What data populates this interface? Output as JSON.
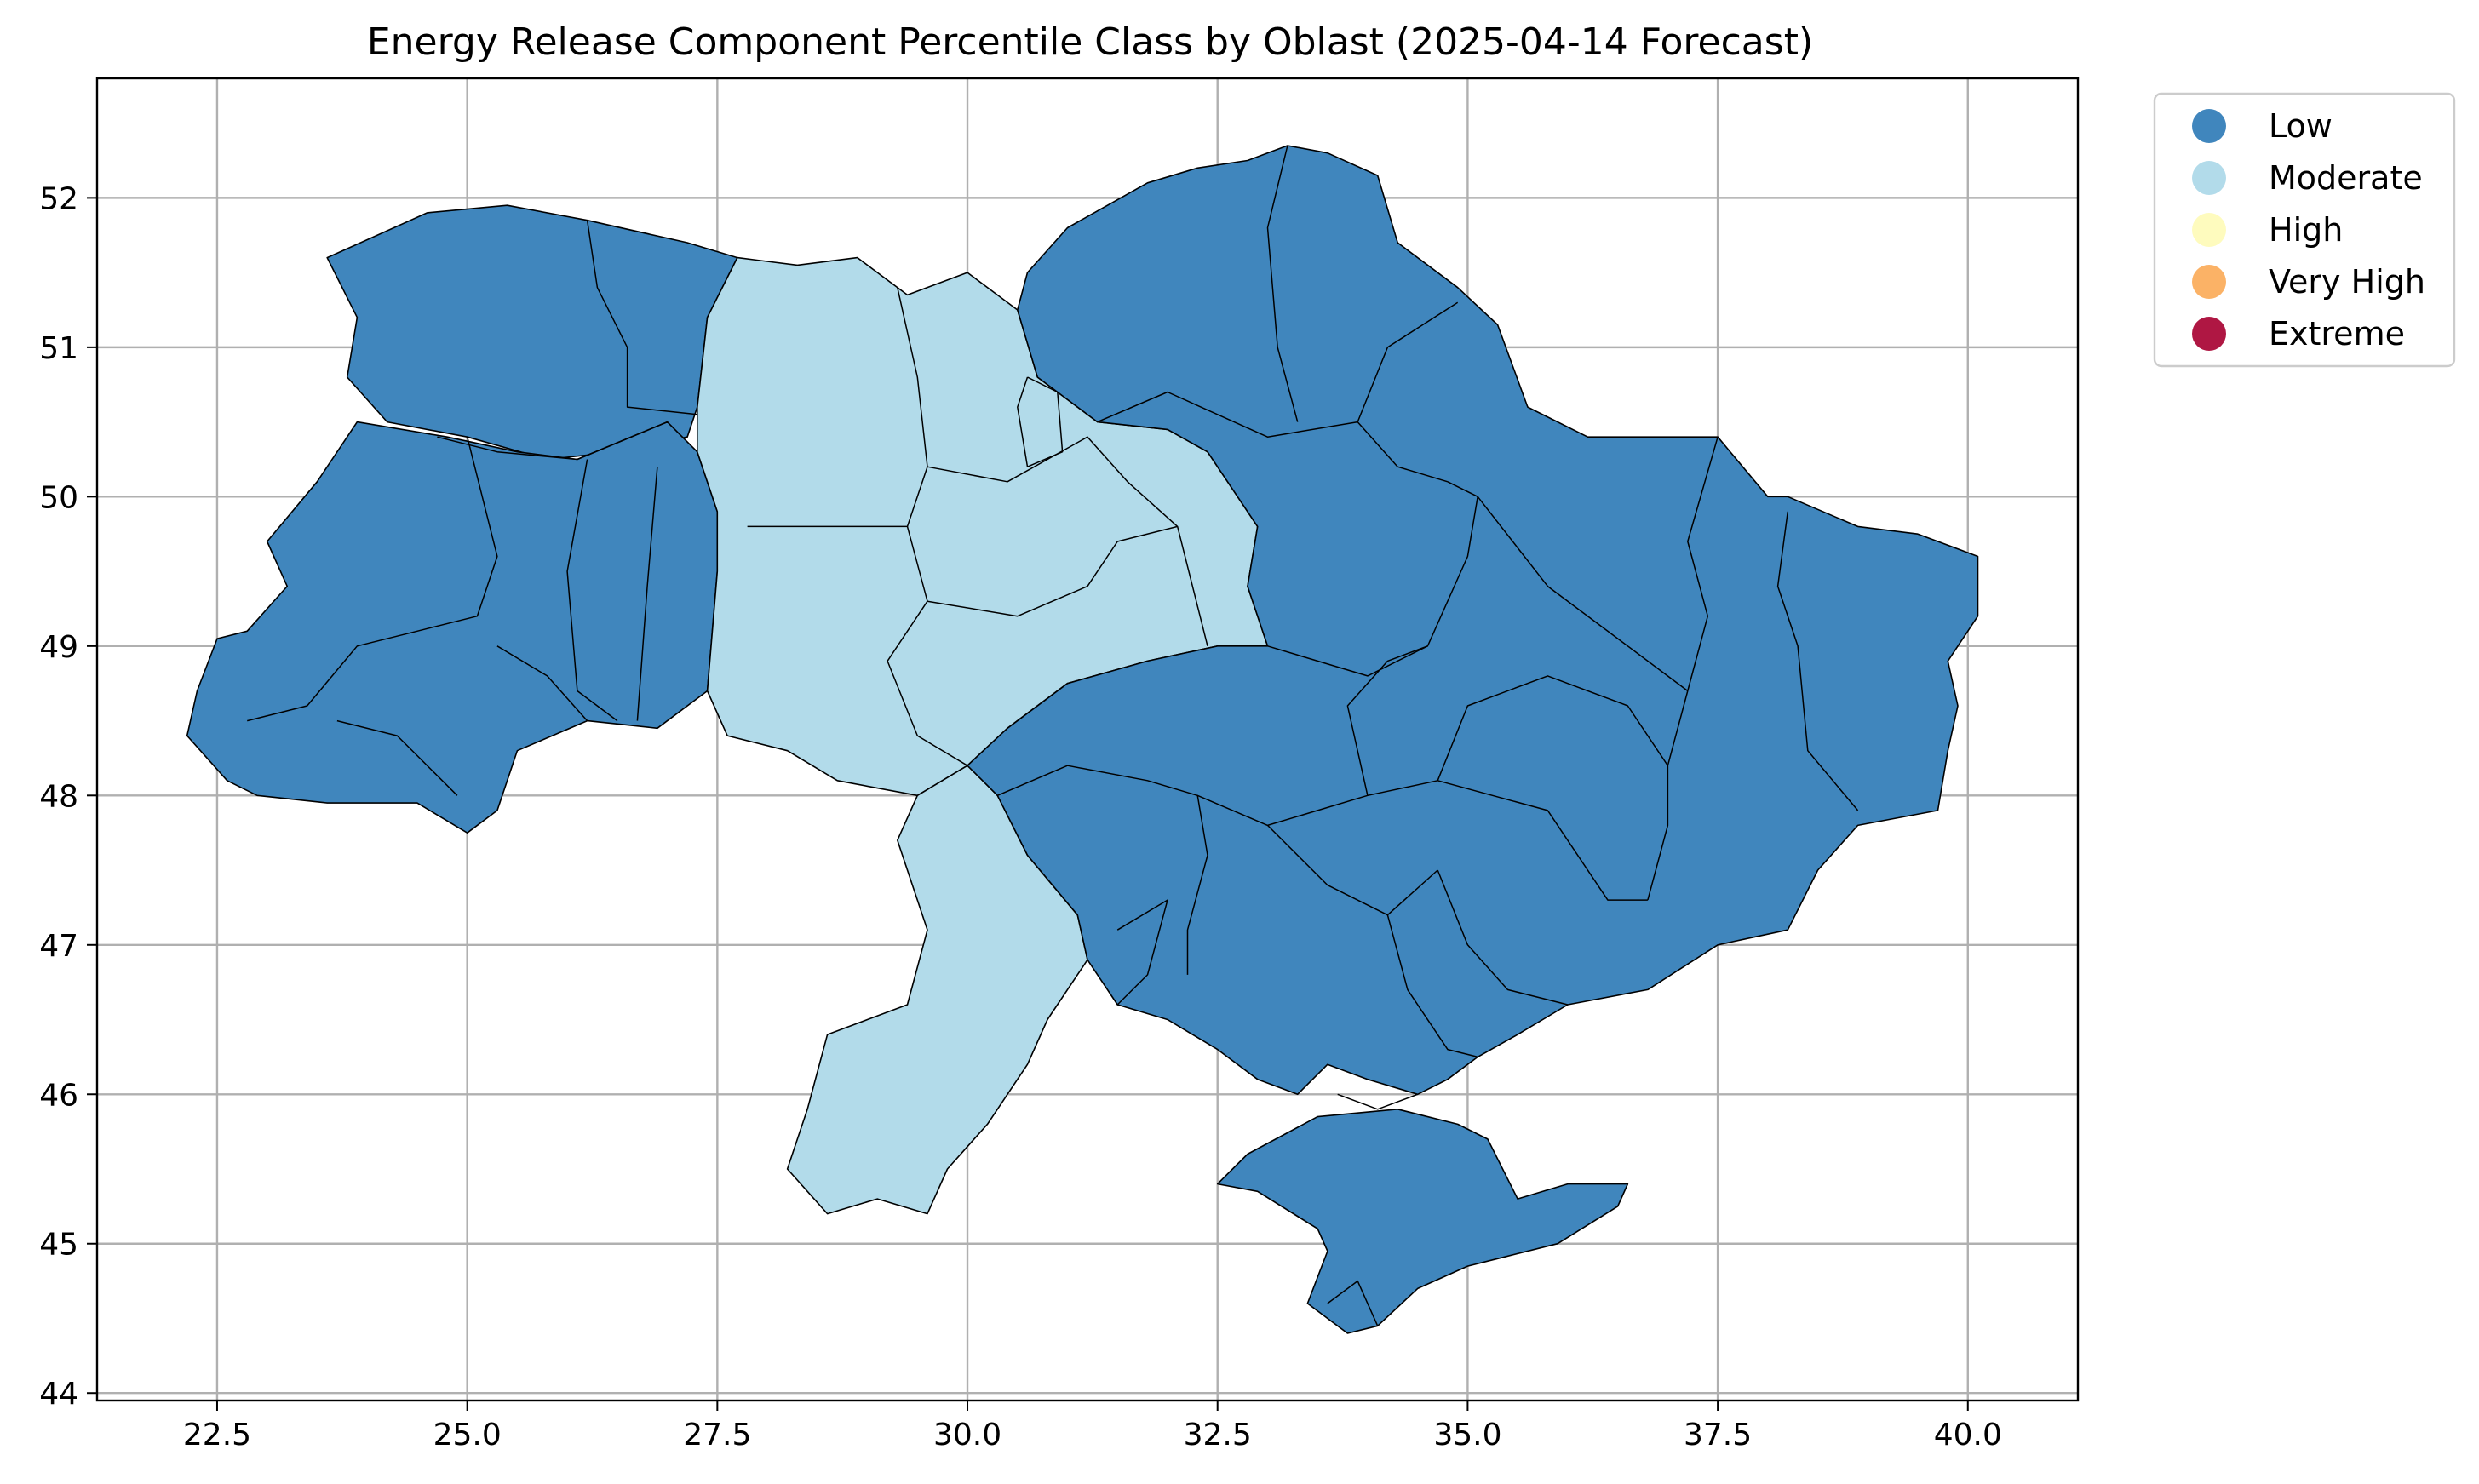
{
  "chart_data": {
    "type": "choropleth",
    "title": "Energy Release Component Percentile Class by Oblast (2025-04-14 Forecast)",
    "xlim": [
      21.3,
      41.1
    ],
    "ylim": [
      43.95,
      52.8
    ],
    "x_ticks": [
      "22.5",
      "25.0",
      "27.5",
      "30.0",
      "32.5",
      "35.0",
      "37.5",
      "40.0"
    ],
    "x_tick_values": [
      22.5,
      25.0,
      27.5,
      30.0,
      32.5,
      35.0,
      37.5,
      40.0
    ],
    "y_ticks": [
      "44",
      "45",
      "46",
      "47",
      "48",
      "49",
      "50",
      "51",
      "52"
    ],
    "y_tick_values": [
      44,
      45,
      46,
      47,
      48,
      49,
      50,
      51,
      52
    ],
    "grid": true,
    "legend_position": "outside-top-right",
    "legend": [
      {
        "label": "Low",
        "color": "#4086bd"
      },
      {
        "label": "Moderate",
        "color": "#b2dbea"
      },
      {
        "label": "High",
        "color": "#fefbbe"
      },
      {
        "label": "Very High",
        "color": "#fbb266"
      },
      {
        "label": "Extreme",
        "color": "#af1743"
      }
    ],
    "regions": [
      {
        "class": "Low",
        "polygon": [
          [
            23.6,
            51.6
          ],
          [
            24.6,
            51.9
          ],
          [
            25.4,
            51.95
          ],
          [
            26.2,
            51.85
          ],
          [
            27.2,
            51.7
          ],
          [
            27.7,
            51.6
          ],
          [
            27.4,
            51.2
          ],
          [
            27.3,
            50.6
          ],
          [
            27.2,
            50.4
          ],
          [
            26.5,
            50.3
          ],
          [
            25.8,
            50.25
          ],
          [
            25.0,
            50.4
          ],
          [
            24.2,
            50.5
          ],
          [
            23.8,
            50.8
          ],
          [
            23.9,
            51.2
          ]
        ]
      },
      {
        "class": "Low",
        "polygon": [
          [
            23.9,
            50.5
          ],
          [
            24.8,
            50.4
          ],
          [
            25.5,
            50.3
          ],
          [
            26.1,
            50.25
          ],
          [
            27.0,
            50.5
          ],
          [
            27.3,
            50.3
          ],
          [
            27.5,
            49.9
          ],
          [
            27.5,
            49.5
          ],
          [
            27.4,
            48.7
          ],
          [
            26.9,
            48.45
          ],
          [
            26.2,
            48.5
          ],
          [
            25.5,
            48.3
          ],
          [
            25.3,
            47.9
          ],
          [
            25.0,
            47.75
          ],
          [
            24.5,
            47.95
          ],
          [
            23.6,
            47.95
          ],
          [
            22.9,
            48.0
          ],
          [
            22.6,
            48.1
          ],
          [
            22.2,
            48.4
          ],
          [
            22.3,
            48.7
          ],
          [
            22.5,
            49.05
          ],
          [
            22.8,
            49.1
          ],
          [
            23.2,
            49.4
          ],
          [
            23.0,
            49.7
          ],
          [
            23.5,
            50.1
          ]
        ]
      },
      {
        "class": "Moderate",
        "polygon": [
          [
            27.7,
            51.6
          ],
          [
            28.3,
            51.55
          ],
          [
            28.9,
            51.6
          ],
          [
            29.4,
            51.35
          ],
          [
            30.0,
            51.5
          ],
          [
            30.5,
            51.25
          ],
          [
            30.7,
            50.8
          ],
          [
            31.3,
            50.5
          ],
          [
            32.0,
            50.45
          ],
          [
            32.4,
            50.3
          ],
          [
            32.6,
            50.1
          ],
          [
            32.9,
            49.8
          ],
          [
            32.8,
            49.4
          ],
          [
            33.0,
            49.0
          ],
          [
            32.5,
            49.0
          ],
          [
            31.8,
            48.9
          ],
          [
            31.0,
            48.75
          ],
          [
            30.4,
            48.45
          ],
          [
            30.0,
            48.2
          ],
          [
            29.5,
            48.0
          ],
          [
            28.7,
            48.1
          ],
          [
            28.2,
            48.3
          ],
          [
            27.6,
            48.4
          ],
          [
            27.4,
            48.7
          ],
          [
            27.5,
            49.5
          ],
          [
            27.5,
            49.9
          ],
          [
            27.3,
            50.3
          ],
          [
            27.3,
            50.6
          ],
          [
            27.4,
            51.2
          ]
        ]
      },
      {
        "class": "Moderate",
        "polygon": [
          [
            29.5,
            48.0
          ],
          [
            30.0,
            48.2
          ],
          [
            30.3,
            48.0
          ],
          [
            30.6,
            47.6
          ],
          [
            31.1,
            47.2
          ],
          [
            31.2,
            46.9
          ],
          [
            30.8,
            46.5
          ],
          [
            30.6,
            46.2
          ],
          [
            30.2,
            45.8
          ],
          [
            29.8,
            45.5
          ],
          [
            29.6,
            45.2
          ],
          [
            29.1,
            45.3
          ],
          [
            28.6,
            45.2
          ],
          [
            28.2,
            45.5
          ],
          [
            28.4,
            45.9
          ],
          [
            28.6,
            46.4
          ],
          [
            29.0,
            46.5
          ],
          [
            29.4,
            46.6
          ],
          [
            29.6,
            47.1
          ],
          [
            29.3,
            47.7
          ]
        ]
      },
      {
        "class": "Low",
        "polygon": [
          [
            30.7,
            50.8
          ],
          [
            30.5,
            51.25
          ],
          [
            30.6,
            51.5
          ],
          [
            31.0,
            51.8
          ],
          [
            31.8,
            52.1
          ],
          [
            32.3,
            52.2
          ],
          [
            32.8,
            52.25
          ],
          [
            33.2,
            52.35
          ],
          [
            33.6,
            52.3
          ],
          [
            34.1,
            52.15
          ],
          [
            34.3,
            51.7
          ],
          [
            34.9,
            51.4
          ],
          [
            35.3,
            51.15
          ],
          [
            35.6,
            50.6
          ],
          [
            36.2,
            50.4
          ],
          [
            37.0,
            50.4
          ],
          [
            37.5,
            50.4
          ],
          [
            38.0,
            50.0
          ],
          [
            38.2,
            50.0
          ],
          [
            38.9,
            49.8
          ],
          [
            39.5,
            49.75
          ],
          [
            40.1,
            49.6
          ],
          [
            40.1,
            49.2
          ],
          [
            39.8,
            48.9
          ],
          [
            39.9,
            48.6
          ],
          [
            39.8,
            48.3
          ],
          [
            39.7,
            47.9
          ],
          [
            39.3,
            47.85
          ],
          [
            38.9,
            47.8
          ],
          [
            38.5,
            47.5
          ],
          [
            38.2,
            47.1
          ],
          [
            37.5,
            47.0
          ],
          [
            36.8,
            46.7
          ],
          [
            36.0,
            46.6
          ],
          [
            35.5,
            46.4
          ],
          [
            35.1,
            46.25
          ],
          [
            34.8,
            46.1
          ],
          [
            34.5,
            46.0
          ],
          [
            34.0,
            46.1
          ],
          [
            33.6,
            46.2
          ],
          [
            33.3,
            46.0
          ],
          [
            32.9,
            46.1
          ],
          [
            32.5,
            46.3
          ],
          [
            32.0,
            46.5
          ],
          [
            31.5,
            46.6
          ],
          [
            31.2,
            46.9
          ],
          [
            31.1,
            47.2
          ],
          [
            30.6,
            47.6
          ],
          [
            30.3,
            48.0
          ],
          [
            30.0,
            48.2
          ],
          [
            30.4,
            48.45
          ],
          [
            31.0,
            48.75
          ],
          [
            31.8,
            48.9
          ],
          [
            32.5,
            49.0
          ],
          [
            33.0,
            49.0
          ],
          [
            32.8,
            49.4
          ],
          [
            32.9,
            49.8
          ],
          [
            32.6,
            50.1
          ],
          [
            32.4,
            50.3
          ],
          [
            32.0,
            50.45
          ],
          [
            31.3,
            50.5
          ]
        ]
      },
      {
        "class": "Low",
        "polygon": [
          [
            34.9,
            45.8
          ],
          [
            35.2,
            45.7
          ],
          [
            35.5,
            45.3
          ],
          [
            36.0,
            45.4
          ],
          [
            36.6,
            45.4
          ],
          [
            36.5,
            45.25
          ],
          [
            35.9,
            45.0
          ],
          [
            35.3,
            44.9
          ],
          [
            35.0,
            44.85
          ],
          [
            34.5,
            44.7
          ],
          [
            34.1,
            44.45
          ],
          [
            33.8,
            44.4
          ],
          [
            33.6,
            44.5
          ],
          [
            33.4,
            44.6
          ],
          [
            33.6,
            44.95
          ],
          [
            33.5,
            45.1
          ],
          [
            32.9,
            45.35
          ],
          [
            32.5,
            45.4
          ],
          [
            32.8,
            45.6
          ],
          [
            33.5,
            45.85
          ],
          [
            34.3,
            45.9
          ]
        ]
      }
    ],
    "borders": [
      [
        [
          26.2,
          51.85
        ],
        [
          26.3,
          51.4
        ],
        [
          26.6,
          51.0
        ],
        [
          26.6,
          50.6
        ],
        [
          27.3,
          50.55
        ]
      ],
      [
        [
          24.7,
          50.4
        ],
        [
          25.3,
          50.3
        ],
        [
          26.1,
          50.25
        ],
        [
          27.0,
          50.5
        ]
      ],
      [
        [
          25.0,
          50.4
        ],
        [
          25.3,
          49.6
        ],
        [
          25.1,
          49.2
        ],
        [
          24.5,
          49.1
        ],
        [
          23.9,
          49.0
        ],
        [
          23.4,
          48.6
        ],
        [
          22.8,
          48.5
        ]
      ],
      [
        [
          26.2,
          50.25
        ],
        [
          26.0,
          49.5
        ],
        [
          26.1,
          48.7
        ],
        [
          26.5,
          48.5
        ]
      ],
      [
        [
          26.9,
          50.2
        ],
        [
          26.8,
          49.4
        ],
        [
          26.7,
          48.5
        ]
      ],
      [
        [
          23.7,
          48.5
        ],
        [
          24.3,
          48.4
        ],
        [
          24.9,
          48.0
        ]
      ],
      [
        [
          25.3,
          49.0
        ],
        [
          25.8,
          48.8
        ],
        [
          26.2,
          48.5
        ]
      ],
      [
        [
          29.3,
          51.4
        ],
        [
          29.5,
          50.8
        ],
        [
          29.6,
          50.2
        ],
        [
          29.4,
          49.8
        ],
        [
          28.7,
          49.8
        ],
        [
          27.8,
          49.8
        ]
      ],
      [
        [
          29.6,
          50.2
        ],
        [
          30.4,
          50.1
        ],
        [
          31.2,
          50.4
        ],
        [
          31.6,
          50.1
        ],
        [
          32.1,
          49.8
        ],
        [
          32.4,
          49.0
        ]
      ],
      [
        [
          29.4,
          49.8
        ],
        [
          29.6,
          49.3
        ],
        [
          29.2,
          48.9
        ],
        [
          29.5,
          48.4
        ],
        [
          30.0,
          48.2
        ]
      ],
      [
        [
          29.6,
          49.3
        ],
        [
          30.5,
          49.2
        ],
        [
          31.2,
          49.4
        ],
        [
          31.5,
          49.7
        ],
        [
          32.1,
          49.8
        ]
      ],
      [
        [
          30.6,
          50.8
        ],
        [
          30.9,
          50.7
        ],
        [
          30.95,
          50.3
        ],
        [
          30.6,
          50.2
        ],
        [
          30.5,
          50.6
        ],
        [
          30.6,
          50.8
        ]
      ],
      [
        [
          31.3,
          50.5
        ],
        [
          32.0,
          50.7
        ],
        [
          33.0,
          50.4
        ],
        [
          33.9,
          50.5
        ],
        [
          34.3,
          50.2
        ],
        [
          34.8,
          50.1
        ]
      ],
      [
        [
          33.2,
          52.35
        ],
        [
          33.0,
          51.8
        ],
        [
          33.1,
          51.0
        ],
        [
          33.3,
          50.5
        ]
      ],
      [
        [
          33.9,
          50.5
        ],
        [
          34.2,
          51.0
        ],
        [
          34.9,
          51.3
        ]
      ],
      [
        [
          34.8,
          50.1
        ],
        [
          35.1,
          50.0
        ],
        [
          35.0,
          49.6
        ],
        [
          34.6,
          49.0
        ],
        [
          34.0,
          48.8
        ],
        [
          33.0,
          49.0
        ]
      ],
      [
        [
          35.1,
          50.0
        ],
        [
          35.8,
          49.4
        ],
        [
          36.6,
          49.0
        ],
        [
          37.2,
          48.7
        ]
      ],
      [
        [
          37.5,
          50.4
        ],
        [
          37.2,
          49.7
        ],
        [
          37.4,
          49.2
        ],
        [
          37.2,
          48.7
        ],
        [
          37.0,
          48.2
        ],
        [
          37.0,
          47.8
        ],
        [
          36.8,
          47.3
        ]
      ],
      [
        [
          38.2,
          49.9
        ],
        [
          38.1,
          49.4
        ],
        [
          38.3,
          49.0
        ],
        [
          38.4,
          48.3
        ],
        [
          38.9,
          47.9
        ]
      ],
      [
        [
          30.3,
          48.0
        ],
        [
          31.0,
          48.2
        ],
        [
          31.8,
          48.1
        ],
        [
          32.3,
          48.0
        ],
        [
          32.4,
          47.6
        ],
        [
          32.2,
          47.1
        ],
        [
          32.2,
          46.8
        ]
      ],
      [
        [
          31.5,
          47.1
        ],
        [
          32.0,
          47.3
        ],
        [
          31.8,
          46.8
        ],
        [
          31.5,
          46.6
        ]
      ],
      [
        [
          32.3,
          48.0
        ],
        [
          33.0,
          47.8
        ],
        [
          33.5,
          47.9
        ],
        [
          34.0,
          48.0
        ],
        [
          34.7,
          48.1
        ],
        [
          35.0,
          48.6
        ],
        [
          35.8,
          48.8
        ],
        [
          36.6,
          48.6
        ],
        [
          37.0,
          48.2
        ]
      ],
      [
        [
          33.0,
          47.8
        ],
        [
          33.6,
          47.4
        ],
        [
          34.2,
          47.2
        ],
        [
          34.7,
          47.5
        ]
      ],
      [
        [
          34.7,
          48.1
        ],
        [
          35.8,
          47.9
        ],
        [
          36.4,
          47.3
        ],
        [
          36.8,
          47.3
        ]
      ],
      [
        [
          34.0,
          48.0
        ],
        [
          33.8,
          48.6
        ],
        [
          34.2,
          48.9
        ],
        [
          34.6,
          49.0
        ]
      ],
      [
        [
          34.2,
          47.2
        ],
        [
          34.4,
          46.7
        ],
        [
          34.8,
          46.3
        ],
        [
          35.1,
          46.25
        ]
      ],
      [
        [
          34.7,
          47.5
        ],
        [
          35.0,
          47.0
        ],
        [
          35.4,
          46.7
        ],
        [
          36.0,
          46.6
        ]
      ],
      [
        [
          33.7,
          46.0
        ],
        [
          34.1,
          45.9
        ],
        [
          34.5,
          46.0
        ]
      ],
      [
        [
          33.6,
          44.6
        ],
        [
          33.9,
          44.75
        ],
        [
          34.1,
          44.45
        ]
      ]
    ]
  }
}
